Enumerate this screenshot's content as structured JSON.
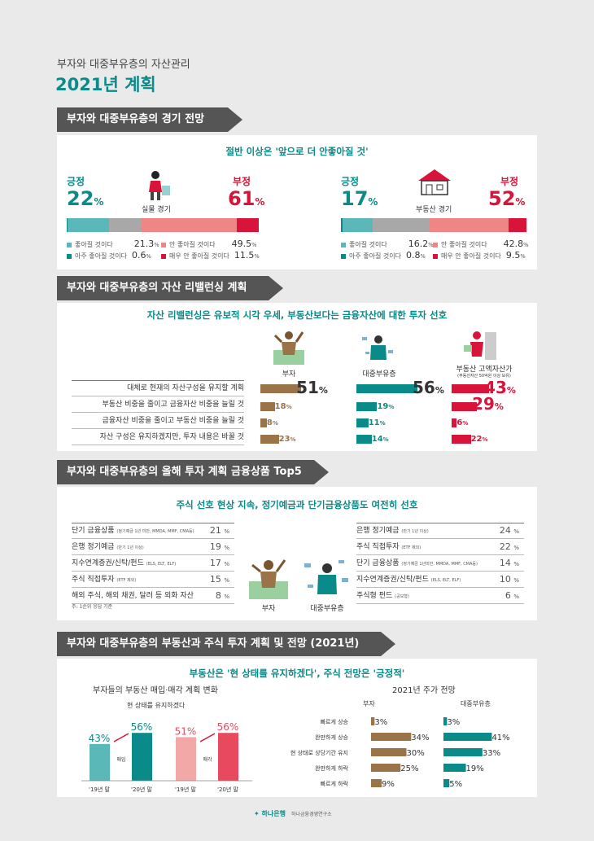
{
  "header": {
    "subtitle": "부자와 대중부유층의 자산관리",
    "title": "2021년 계획"
  },
  "section1": {
    "title": "부자와 대중부유층의 경기 전망",
    "subtitle": "절반 이상은 '앞으로 더 안좋아질 것'",
    "left": {
      "label": "실물 경기",
      "pos_label": "긍정",
      "pos_value": "22",
      "neg_label": "부정",
      "neg_value": "61",
      "unit": "%",
      "legend": [
        {
          "label": "좋아질 것이다",
          "value": "21.3"
        },
        {
          "label": "안 좋아질 것이다",
          "value": "49.5"
        },
        {
          "label": "아주 좋아질 것이다",
          "value": "0.6"
        },
        {
          "label": "매우 안 좋아질 것이다",
          "value": "11.5"
        }
      ]
    },
    "right": {
      "label": "부동산 경기",
      "pos_label": "긍정",
      "pos_value": "17",
      "neg_label": "부정",
      "neg_value": "52",
      "unit": "%",
      "legend": [
        {
          "label": "좋아질 것이다",
          "value": "16.2"
        },
        {
          "label": "안 좋아질 것이다",
          "value": "42.8"
        },
        {
          "label": "아주 좋아질 것이다",
          "value": "0.8"
        },
        {
          "label": "매우 안 좋아질 것이다",
          "value": "9.5"
        }
      ]
    },
    "colors": {
      "very_good": "#0a8a88",
      "good": "#5ab8b8",
      "neutral": "#a8a8a8",
      "bad": "#ef8683",
      "very_bad": "#d8143a"
    }
  },
  "section2": {
    "title": "부자와 대중부유층의 자산 리밸런싱 계획",
    "subtitle": "자산 리밸런싱은 유보적 시각 우세, 부동산보다는 금융자산에 대한 투자 선호",
    "groups": [
      {
        "name": "부자",
        "note": "",
        "color": "#9b7349"
      },
      {
        "name": "대중부유층",
        "note": "",
        "color": "#0a8a88"
      },
      {
        "name": "부동산 고액자산가",
        "note": "(부동산자산 50억원 이상 보유)",
        "color": "#d8143a"
      }
    ],
    "rows": [
      "대체로 현재의 자산구성을 유지할 계획",
      "부동산 비중을 줄이고 금융자산 비중을 늘릴 것",
      "금융자산 비중을 줄이고 부동산 비중을 늘릴 것",
      "자산 구성은 유지하겠지만, 투자 내용은 바꿀 것"
    ]
  },
  "section3": {
    "title": "부자와 대중부유층의 올해 투자 계획 금융상품 Top5",
    "subtitle": "주식 선호 현상 지속, 정기예금과 단기금융상품도 여전히 선호",
    "left_items": [
      {
        "name": "단기 금융상품",
        "note": "(정기예금 1년 미만, MMDA, MMF, CMA등)",
        "value": "21"
      },
      {
        "name": "은행 정기예금",
        "note": "(만기 1년 이상)",
        "value": "19"
      },
      {
        "name": "지수연계증권/신탁/펀드",
        "note": "(ELS, ELT, ELF)",
        "value": "17"
      },
      {
        "name": "주식 직접투자",
        "note": "(ETF 제외)",
        "value": "15"
      },
      {
        "name": "해외 주식, 해외 채권, 달러 등 외화 자산",
        "note": "",
        "value": "8"
      }
    ],
    "right_items": [
      {
        "name": "은행 정기예금",
        "note": "(만기 1년 이상)",
        "value": "24"
      },
      {
        "name": "주식 직접투자",
        "note": "(ETF 제외)",
        "value": "22"
      },
      {
        "name": "단기 금융상품",
        "note": "(정기예금 1년미만, MMDA, MMF, CMA등)",
        "value": "14"
      },
      {
        "name": "지수연계증권/신탁/펀드",
        "note": "(ELS, ELT, ELF)",
        "value": "10"
      },
      {
        "name": "주식형 펀드",
        "note": "(공모형)",
        "value": "6"
      }
    ],
    "left_label": "부자",
    "right_label": "대중부유층",
    "footnote": "주: 1순위 응답 기준",
    "unit": "%"
  },
  "section4": {
    "title": "부자와 대중부유층의 부동산과 주식 투자 계획 및 전망 (2021년)",
    "subtitle": "부동산은 '현 상태를 유지하겠다', 주식 전망은 '긍정적'",
    "left_title": "부자들의 부동산 매입·매각 계획 변화",
    "left_subtitle": "현 상태를 유지하겠다",
    "right_title": "2021년 주가 전망",
    "right_group1": "부자",
    "right_group2": "대중부유층",
    "buy_label": "매입",
    "sell_label": "매각"
  },
  "footer": {
    "logo_text": "하나은행",
    "org": "하나금융경영연구소"
  },
  "chart_data": [
    {
      "type": "bar",
      "title": "",
      "categories": [
        "실물 경기",
        "부동산 경기"
      ],
      "series": [
        {
          "name": "아주 좋아질 것이다",
          "values": [
            0.6,
            0.8
          ]
        },
        {
          "name": "좋아질 것이다",
          "values": [
            21.3,
            16.2
          ]
        },
        {
          "name": "안 좋아질 것이다",
          "values": [
            49.5,
            42.8
          ]
        },
        {
          "name": "매우 안 좋아질 것이다",
          "values": [
            11.5,
            9.5
          ]
        }
      ]
    },
    {
      "type": "bar",
      "title": "",
      "categories": [
        "대체로 현재의 자산구성을 유지할 계획",
        "부동산 비중을 줄이고 금융자산 비중을 늘릴 것",
        "금융자산 비중을 줄이고 부동산 비중을 늘릴 것",
        "자산 구성은 유지하겠지만, 투자 내용은 바꿀 것"
      ],
      "series": [
        {
          "name": "부자",
          "values": [
            51,
            18,
            8,
            23
          ]
        },
        {
          "name": "대중부유층",
          "values": [
            56,
            19,
            11,
            14
          ]
        },
        {
          "name": "부동산 고액자산가",
          "values": [
            43,
            29,
            6,
            22
          ]
        }
      ]
    },
    {
      "type": "bar",
      "title": "현 상태를 유지하겠다",
      "categories": [
        "'19년 말",
        "'20년 말"
      ],
      "series": [
        {
          "name": "매입",
          "values": [
            43,
            56
          ]
        },
        {
          "name": "매각",
          "values": [
            51,
            56
          ]
        }
      ]
    },
    {
      "type": "bar",
      "title": "2021년 주가 전망",
      "categories": [
        "빠르게 상승",
        "완만하게 상승",
        "현 상태로 상당기간 유지",
        "완만하게 하락",
        "빠르게 하락"
      ],
      "series": [
        {
          "name": "부자",
          "values": [
            3,
            34,
            30,
            25,
            9
          ]
        },
        {
          "name": "대중부유층",
          "values": [
            3,
            41,
            33,
            19,
            5
          ]
        }
      ]
    }
  ]
}
